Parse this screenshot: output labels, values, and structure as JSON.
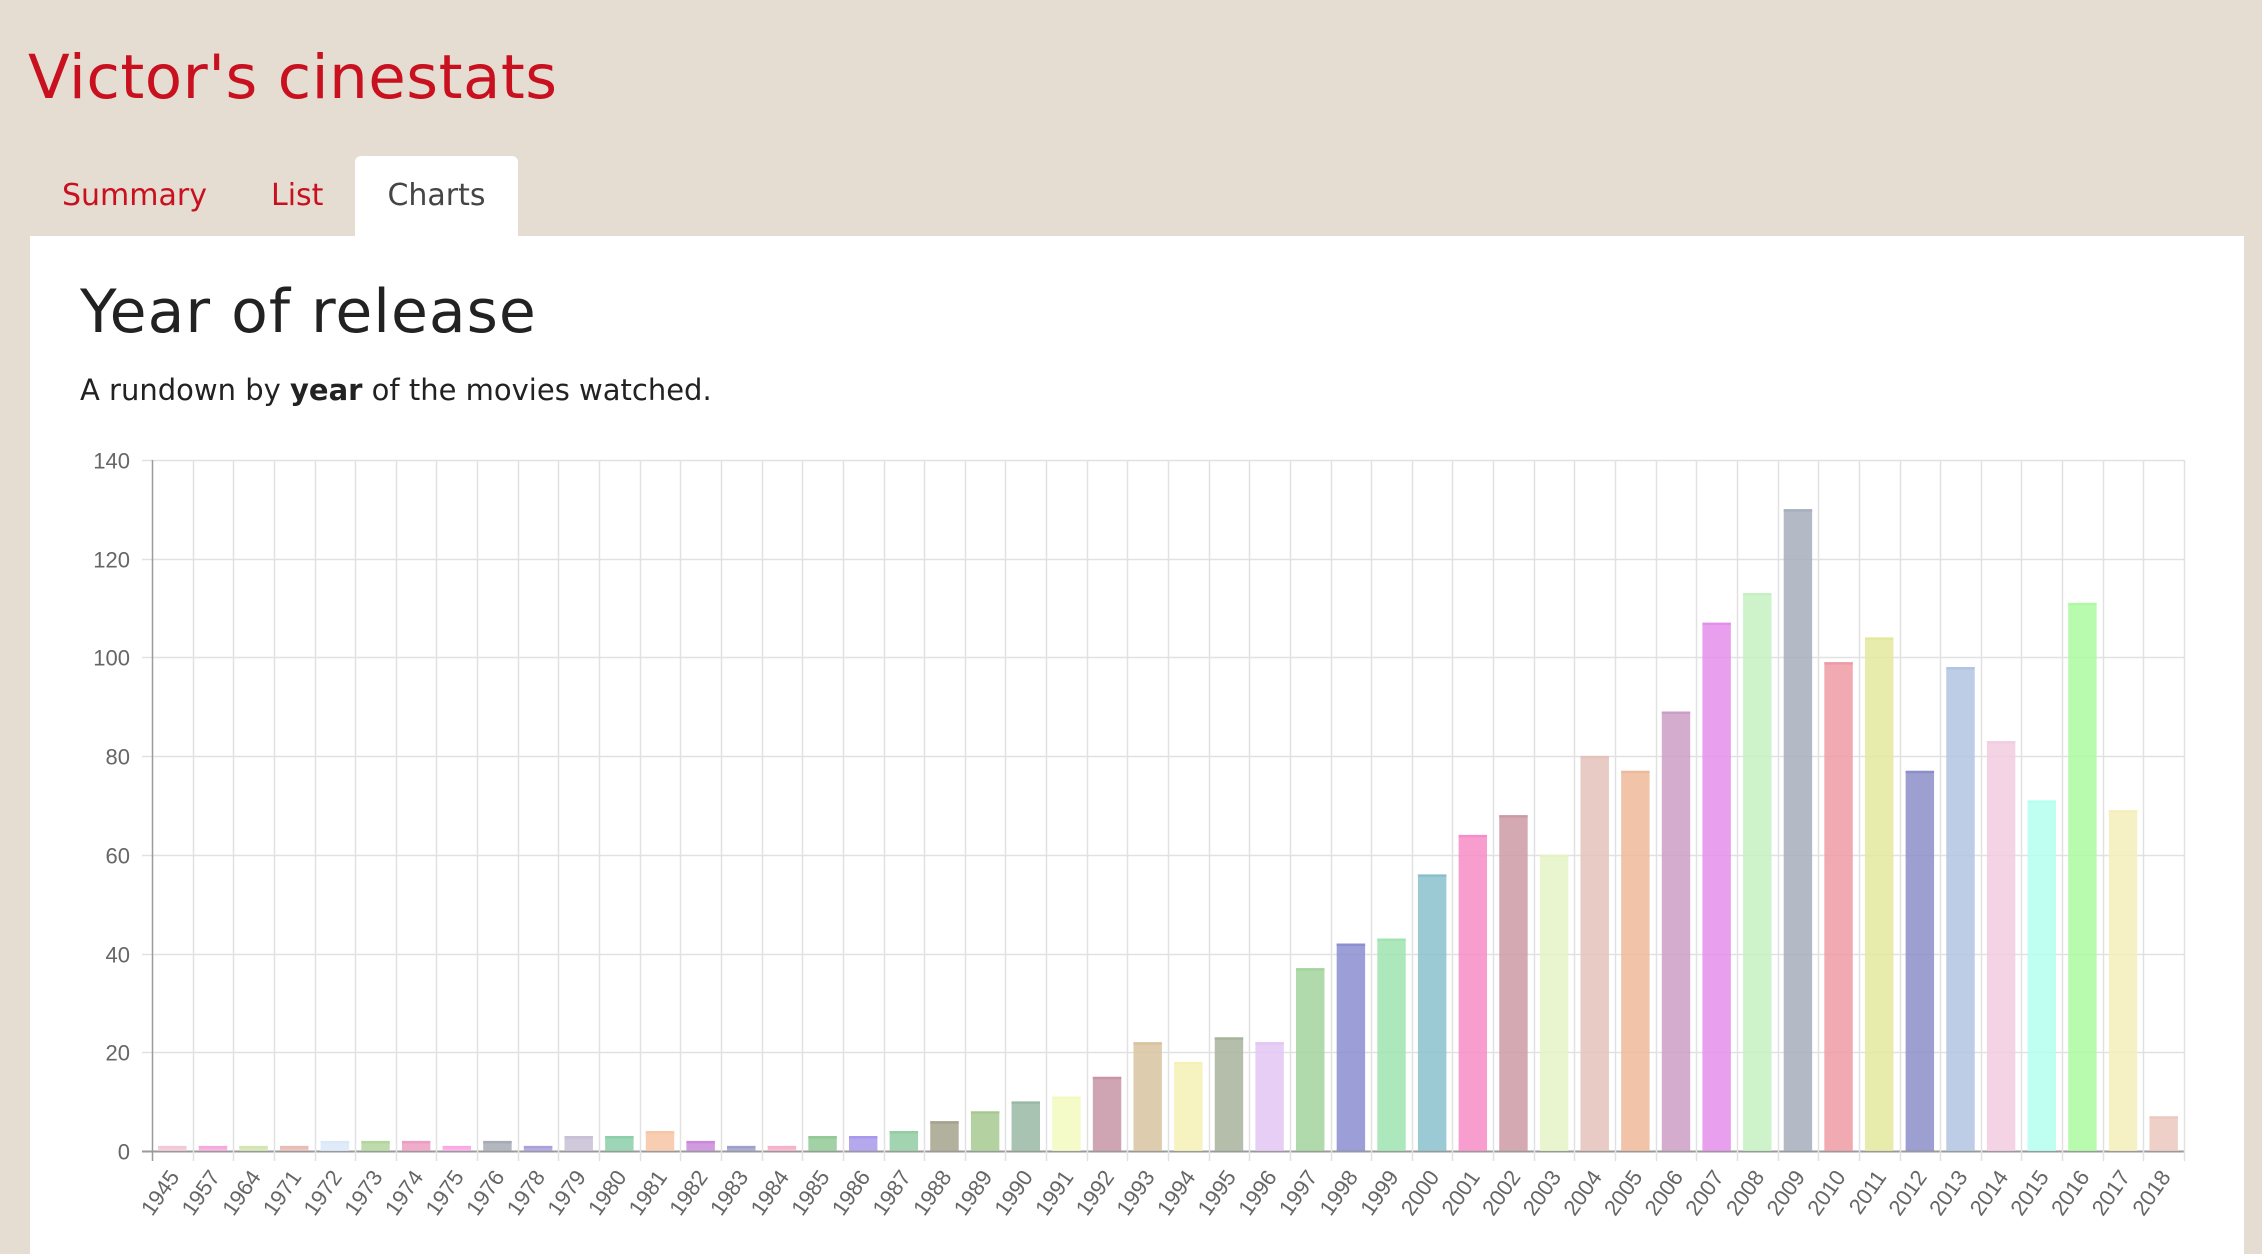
{
  "app": {
    "title": "Victor's cinestats"
  },
  "tabs": [
    {
      "label": "Summary",
      "active": false
    },
    {
      "label": "List",
      "active": false
    },
    {
      "label": "Charts",
      "active": true
    }
  ],
  "section": {
    "title": "Year of release",
    "subtitle_before": "A rundown by ",
    "subtitle_bold": "year",
    "subtitle_after": " of the movies watched."
  },
  "chart_data": {
    "type": "bar",
    "ylim": [
      0,
      140
    ],
    "yticks": [
      0,
      20,
      40,
      60,
      80,
      100,
      120,
      140
    ],
    "grid": true,
    "legend": "none",
    "categories": [
      "1945",
      "1957",
      "1964",
      "1971",
      "1972",
      "1973",
      "1974",
      "1975",
      "1976",
      "1978",
      "1979",
      "1980",
      "1981",
      "1982",
      "1983",
      "1984",
      "1985",
      "1986",
      "1987",
      "1988",
      "1989",
      "1990",
      "1991",
      "1992",
      "1993",
      "1994",
      "1995",
      "1996",
      "1997",
      "1998",
      "1999",
      "2000",
      "2001",
      "2002",
      "2003",
      "2004",
      "2005",
      "2006",
      "2007",
      "2008",
      "2009",
      "2010",
      "2011",
      "2012",
      "2013",
      "2014",
      "2015",
      "2016",
      "2017",
      "2018"
    ],
    "values": [
      1,
      1,
      1,
      1,
      2,
      2,
      2,
      1,
      2,
      1,
      3,
      3,
      4,
      2,
      1,
      1,
      3,
      3,
      4,
      6,
      8,
      10,
      11,
      15,
      22,
      18,
      23,
      22,
      37,
      42,
      43,
      56,
      64,
      68,
      60,
      80,
      77,
      89,
      107,
      113,
      130,
      99,
      104,
      77,
      98,
      83,
      71,
      111,
      69,
      7
    ],
    "colors": [
      "#f2c7d6",
      "#f3a9da",
      "#d2e5b2",
      "#e8bcb4",
      "#d9e7f8",
      "#b3d59e",
      "#ec9dc2",
      "#f8a8e4",
      "#a6aab4",
      "#a9a0dc",
      "#c8c0d6",
      "#8ccfaa",
      "#f7c6a6",
      "#c889d9",
      "#9da0cc",
      "#f6b0c9",
      "#92c997",
      "#a899ea",
      "#93cda3",
      "#a3a38c",
      "#a7c991",
      "#99b9a4",
      "#f3f9c0",
      "#c895a6",
      "#d7c3a0",
      "#f5f1b5",
      "#a8b39c",
      "#e3c6f3",
      "#a2d49c",
      "#8b8ed0",
      "#9fe4b1",
      "#89bfcc",
      "#f68dc7",
      "#cc9aa3",
      "#e4f3c6",
      "#e3c2ba",
      "#eeb89a",
      "#cd9ec5",
      "#e48eeb",
      "#c5f1c2",
      "#a6aebc",
      "#ee9aa4",
      "#e3e89d",
      "#8d8ec9",
      "#b1c4e2",
      "#f2ccdf",
      "#b3fff0",
      "#acfaa1",
      "#f5eebb",
      "#ecc8bf"
    ]
  }
}
